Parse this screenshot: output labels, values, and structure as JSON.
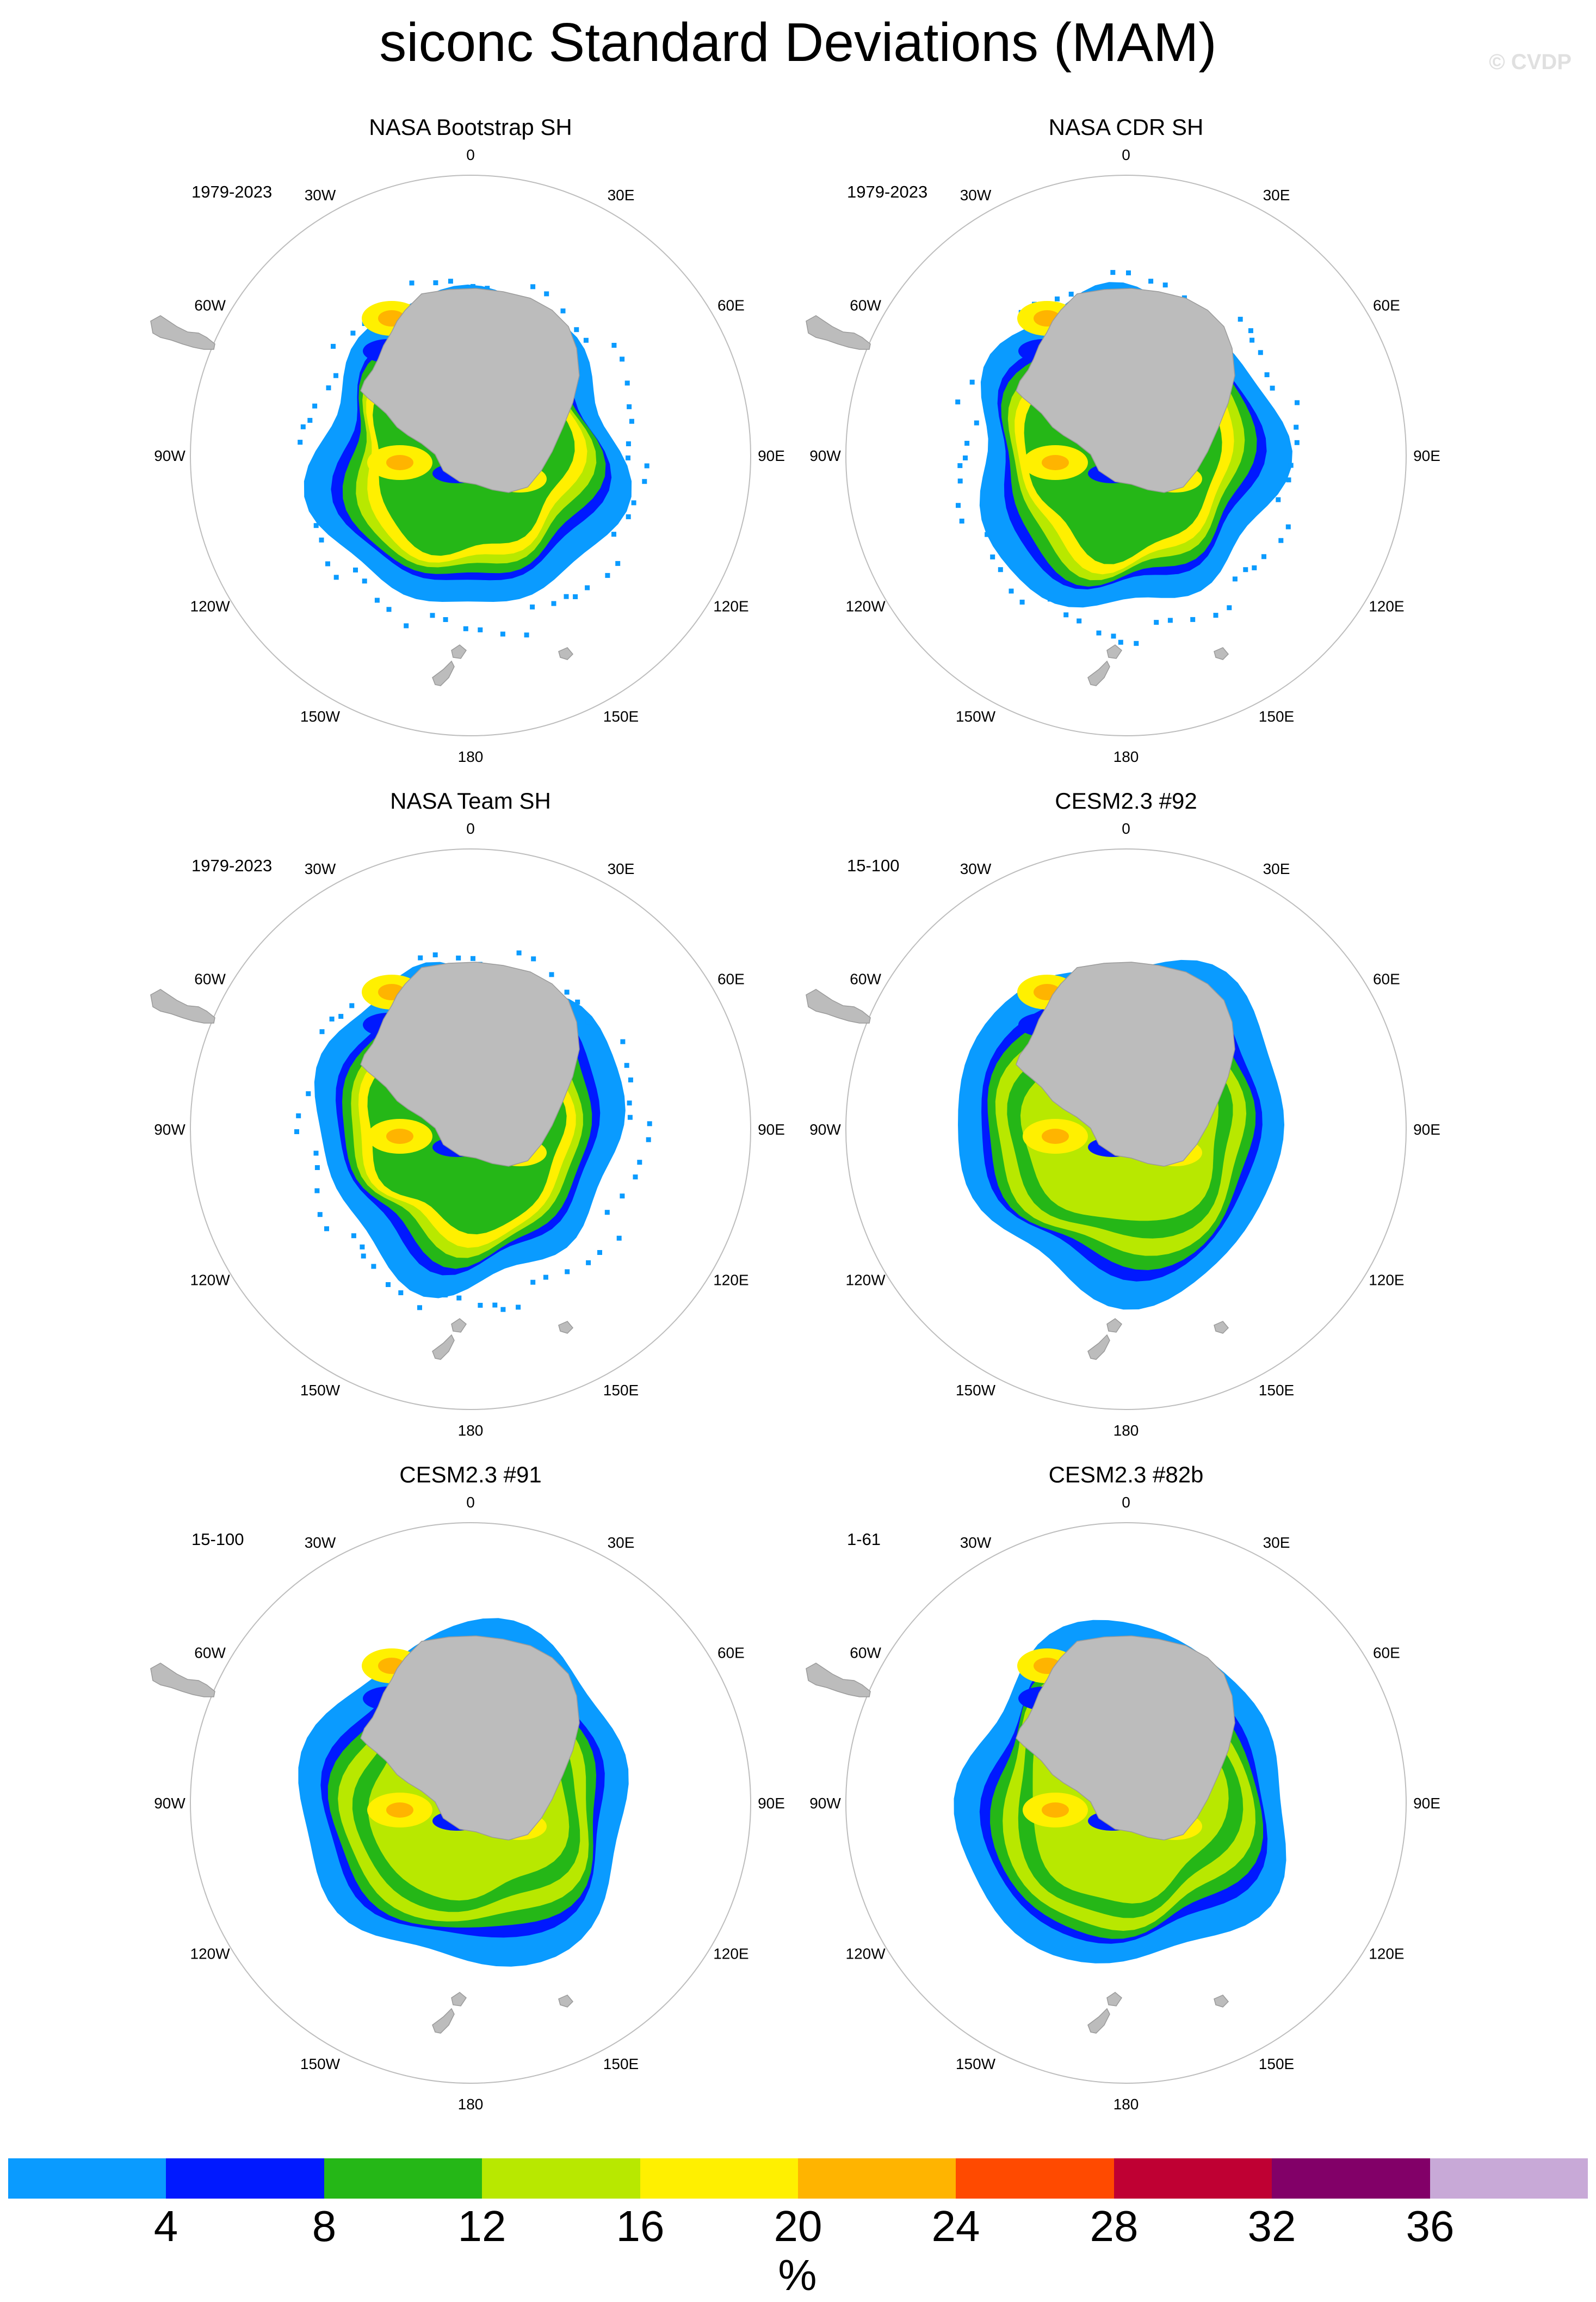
{
  "title": "siconc Standard Deviations (MAM)",
  "watermark": "© CVDP",
  "panels": [
    {
      "title": "NASA Bootstrap SH",
      "years": "1979-2023"
    },
    {
      "title": "NASA CDR SH",
      "years": "1979-2023"
    },
    {
      "title": "NASA Team SH",
      "years": "1979-2023"
    },
    {
      "title": "CESM2.3 #92",
      "years": "15-100"
    },
    {
      "title": "CESM2.3 #91",
      "years": "15-100"
    },
    {
      "title": "CESM2.3 #82b",
      "years": "1-61"
    }
  ],
  "longitude_labels": [
    "0",
    "30E",
    "60E",
    "90E",
    "120E",
    "150E",
    "180",
    "150W",
    "120W",
    "90W",
    "60W",
    "30W"
  ],
  "colorbar": {
    "colors": [
      "#0a9bff",
      "#0019ff",
      "#25b717",
      "#b8e800",
      "#fff000",
      "#ffb400",
      "#ff4a00",
      "#bf0033",
      "#820068",
      "#c8a9d7"
    ],
    "labels": [
      "4",
      "8",
      "12",
      "16",
      "20",
      "24",
      "28",
      "32",
      "36"
    ],
    "unit": "%"
  },
  "chart_data": {
    "type": "heatmap",
    "title": "siconc Standard Deviations (MAM)",
    "projection": "south polar stereographic",
    "units": "%",
    "contour_levels": [
      4,
      8,
      12,
      16,
      20,
      24,
      28,
      32,
      36
    ],
    "panels": [
      "NASA Bootstrap SH",
      "NASA CDR SH",
      "NASA Team SH",
      "CESM2.3 #92",
      "CESM2.3 #91",
      "CESM2.3 #82b"
    ]
  }
}
